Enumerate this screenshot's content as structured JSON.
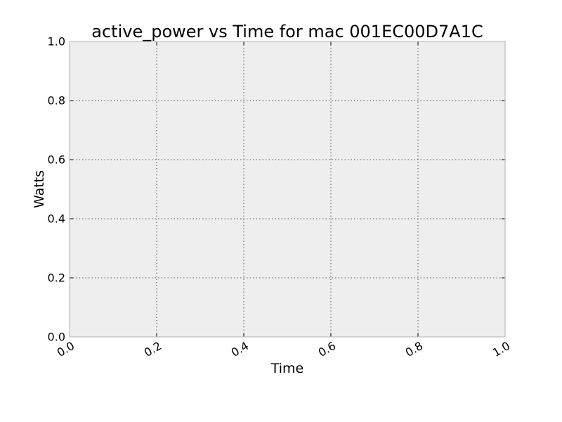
{
  "chart_data": {
    "type": "line",
    "title": "active_power vs Time for mac 001EC00D7A1C",
    "xlabel": "Time",
    "ylabel": "Watts",
    "xlim": [
      0.0,
      1.0
    ],
    "ylim": [
      0.0,
      1.0
    ],
    "x_ticks": [
      "0.0",
      "0.2",
      "0.4",
      "0.6",
      "0.8",
      "1.0"
    ],
    "y_ticks": [
      "0.0",
      "0.2",
      "0.4",
      "0.6",
      "0.8",
      "1.0"
    ],
    "grid": true,
    "series": [],
    "colors": {
      "plot_background": "#eeeeee",
      "frame": "#bcbcbc",
      "grid": "#555555"
    }
  }
}
